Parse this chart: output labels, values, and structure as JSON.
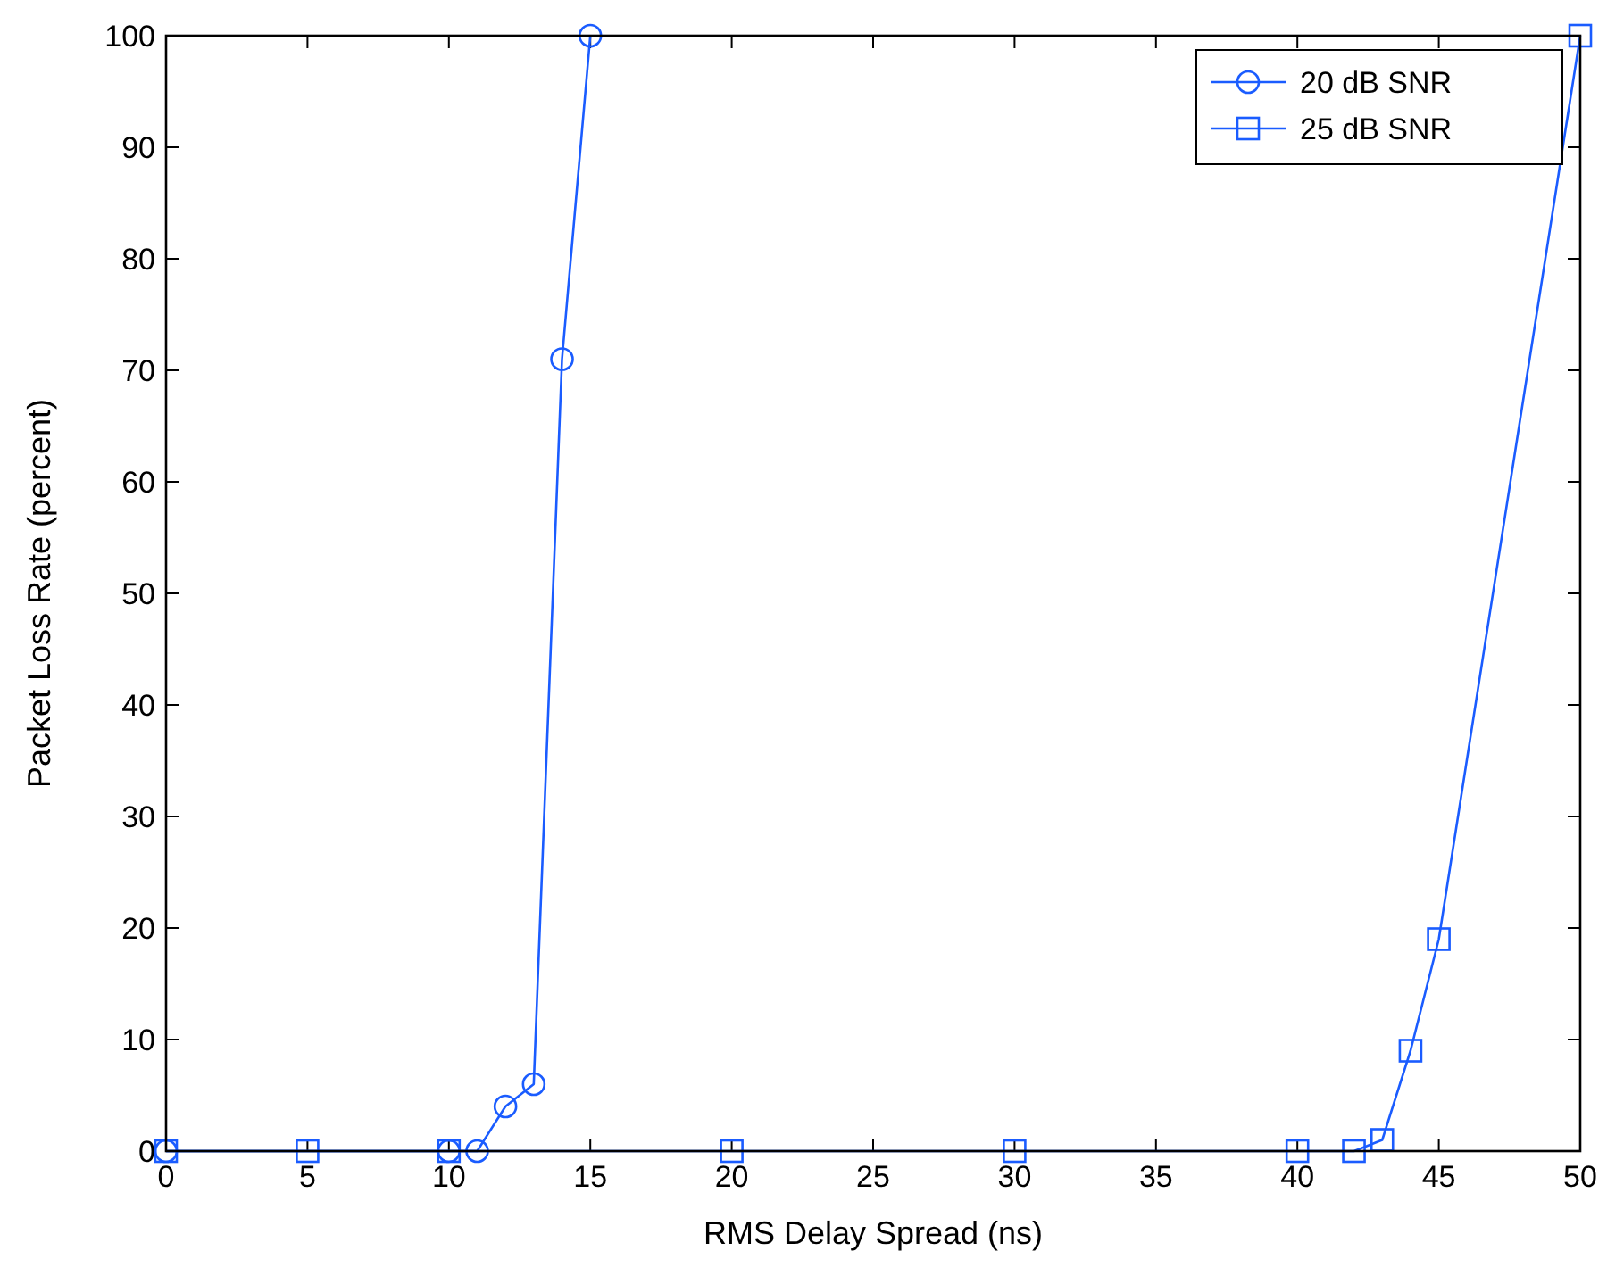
{
  "chart_data": {
    "type": "line",
    "xlabel": "RMS Delay Spread (ns)",
    "ylabel": "Packet Loss Rate (percent)",
    "xlim": [
      0,
      50
    ],
    "xticks": [
      0,
      5,
      10,
      15,
      20,
      25,
      30,
      35,
      40,
      45,
      50
    ],
    "ylim": [
      0,
      100
    ],
    "yticks": [
      0,
      10,
      20,
      30,
      40,
      50,
      60,
      70,
      80,
      90,
      100
    ],
    "grid": false,
    "legend": "top right",
    "series": [
      {
        "name": "20 dB SNR",
        "color": "#1a5cff",
        "marker": "circle",
        "x": [
          0,
          10,
          11,
          12,
          13,
          14,
          15
        ],
        "values": [
          0,
          0,
          0,
          4,
          6,
          71,
          100
        ]
      },
      {
        "name": "25 dB SNR",
        "color": "#1a5cff",
        "marker": "square",
        "x": [
          0,
          5,
          10,
          20,
          30,
          40,
          42,
          43,
          44,
          45,
          50
        ],
        "values": [
          0,
          0,
          0,
          0,
          0,
          0,
          0,
          1,
          9,
          19,
          100
        ]
      }
    ]
  }
}
